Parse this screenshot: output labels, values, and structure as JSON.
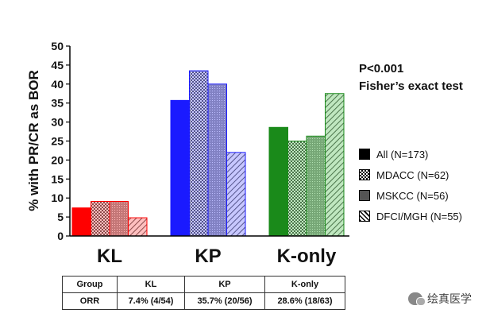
{
  "chart_data": {
    "type": "bar",
    "title": "",
    "ylabel": "% with PR/CR as BOR",
    "xlabel": "",
    "ylim": [
      0,
      50
    ],
    "yticks": [
      0,
      5,
      10,
      15,
      20,
      25,
      30,
      35,
      40,
      45,
      50
    ],
    "categories": [
      "KL",
      "KP",
      "K-only"
    ],
    "series": [
      {
        "name": "All (N=173)",
        "pattern": "solid",
        "values": [
          7.4,
          35.7,
          28.6
        ]
      },
      {
        "name": "MDACC (N=62)",
        "pattern": "checker",
        "values": [
          9.1,
          43.5,
          25.0
        ]
      },
      {
        "name": "MSKCC (N=56)",
        "pattern": "dots",
        "values": [
          9.1,
          40.0,
          26.3
        ]
      },
      {
        "name": "DFCI/MGH (N=55)",
        "pattern": "diagonal",
        "values": [
          4.8,
          22.0,
          37.5
        ]
      }
    ],
    "group_colors": {
      "KL": {
        "dark": "#ff0000",
        "light": "#ff8a8a"
      },
      "KP": {
        "dark": "#1a1aff",
        "light": "#9a9aff"
      },
      "K-only": {
        "dark": "#1a8a1a",
        "light": "#8ad48a"
      }
    },
    "legend_position": "right"
  },
  "stats": {
    "p_value": "P<0.001",
    "test": "Fisher’s exact test"
  },
  "legend": {
    "items": [
      {
        "label": "All (N=173)",
        "pattern": "solid"
      },
      {
        "label": "MDACC (N=62)",
        "pattern": "checker"
      },
      {
        "label": "MSKCC (N=56)",
        "pattern": "dots"
      },
      {
        "label": "DFCI/MGH (N=55)",
        "pattern": "diagonal"
      }
    ]
  },
  "summary_table": {
    "headers": [
      "Group",
      "KL",
      "KP",
      "K-only"
    ],
    "row": [
      "ORR",
      "7.4% (4/54)",
      "35.7% (20/56)",
      "28.6% (18/63)"
    ]
  },
  "watermark": {
    "text": "绘真医学",
    "icon": "wechat-icon"
  }
}
